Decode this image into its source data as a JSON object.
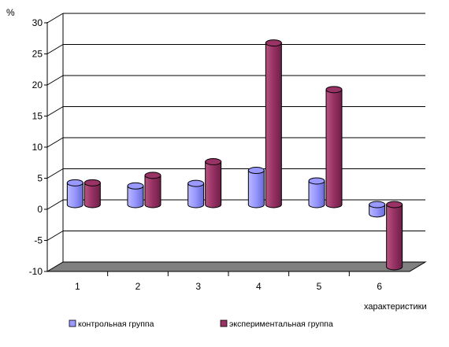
{
  "chart_data": {
    "type": "bar",
    "style": "3d-cylinder",
    "ylabel": "%",
    "xlabel": "характеристики",
    "categories": [
      "1",
      "2",
      "3",
      "4",
      "5",
      "6"
    ],
    "series": [
      {
        "name": "контрольная группа",
        "color": "#9999ff",
        "values": [
          3.5,
          3.0,
          3.4,
          5.5,
          3.8,
          -1.5
        ]
      },
      {
        "name": "экспериментальная группа",
        "color": "#993366",
        "values": [
          3.5,
          4.7,
          6.9,
          26.0,
          18.5,
          -10.0
        ]
      }
    ],
    "ylim": [
      -10,
      30
    ],
    "yticks": [
      "30",
      "25",
      "20",
      "15",
      "10",
      "5",
      "0",
      "-5",
      "-10"
    ],
    "grid": true,
    "legend_position": "bottom"
  }
}
